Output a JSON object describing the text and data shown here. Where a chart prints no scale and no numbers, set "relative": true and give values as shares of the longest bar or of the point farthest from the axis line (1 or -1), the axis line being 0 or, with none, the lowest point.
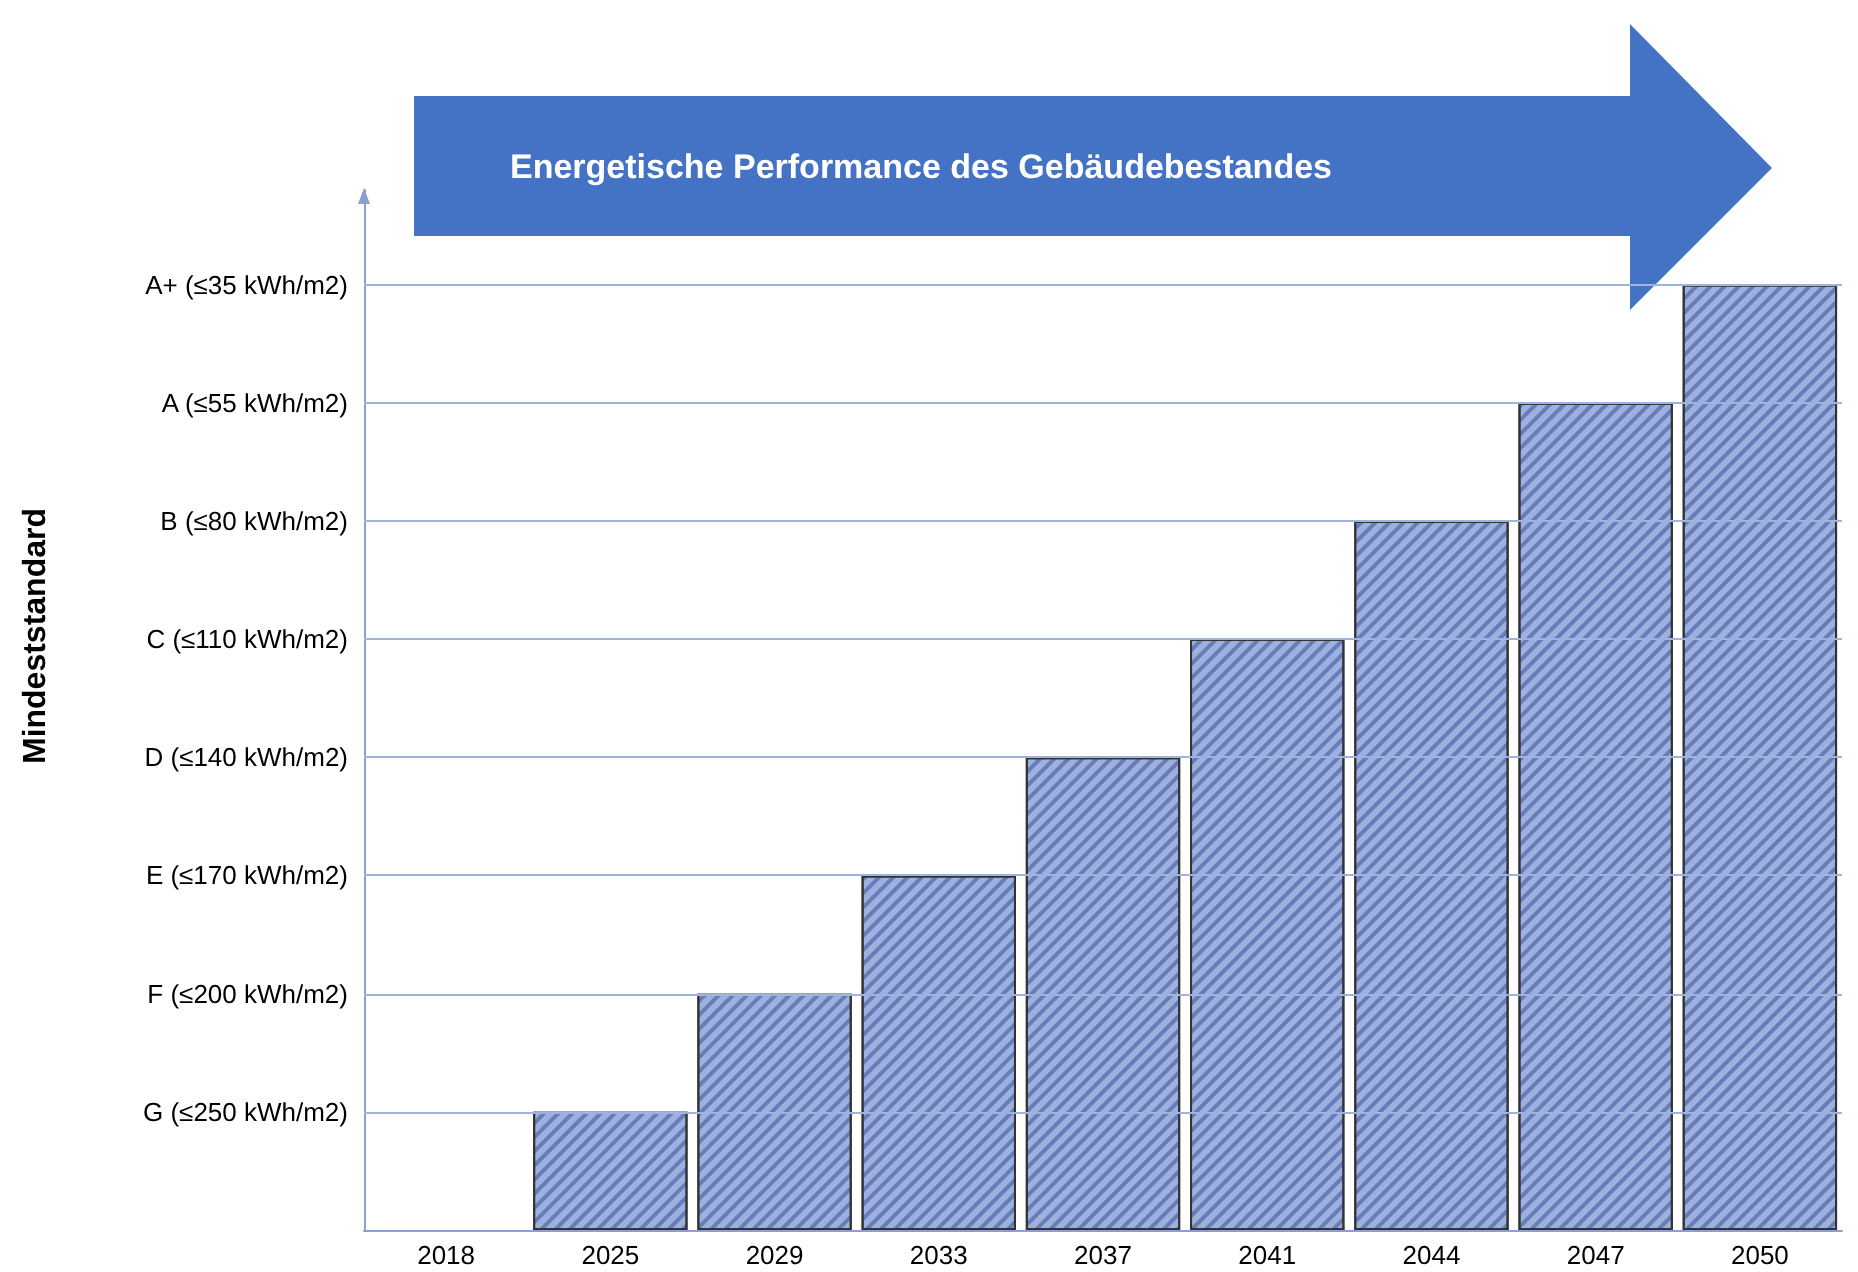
{
  "chart_data": {
    "type": "bar",
    "title": "Energetische Performance des Gebäudebestandes",
    "annotations": [
      "Mindeststandard"
    ],
    "relative": true,
    "categories": [
      "2018",
      "2025",
      "2029",
      "2033",
      "2037",
      "2041",
      "2044",
      "2047",
      "2050"
    ],
    "values": [
      null,
      0.125,
      0.25,
      0.375,
      0.5,
      0.625,
      0.75,
      0.875,
      1
    ],
    "color": "#9db1de",
    "ref_lines": [
      {
        "axis": "y",
        "value": 0.125,
        "label": "G (≤250 kWh/m2)",
        "color": "#9fb3e0"
      },
      {
        "axis": "y",
        "value": 0.25,
        "label": "F (≤200 kWh/m2)",
        "color": "#9fb3e0"
      },
      {
        "axis": "y",
        "value": 0.375,
        "label": "E (≤170 kWh/m2)",
        "color": "#9fb3e0"
      },
      {
        "axis": "y",
        "value": 0.5,
        "label": "D (≤140 kWh/m2)",
        "color": "#9fb3e0"
      },
      {
        "axis": "y",
        "value": 0.625,
        "label": "C (≤110 kWh/m2)",
        "color": "#9fb3e0"
      },
      {
        "axis": "y",
        "value": 0.75,
        "label": "B (≤80 kWh/m2)",
        "color": "#9fb3e0"
      },
      {
        "axis": "y",
        "value": 0.875,
        "label": "A (≤55 kWh/m2)",
        "color": "#9fb3e0"
      },
      {
        "axis": "y",
        "value": 1,
        "label": "A+ (≤35 kWh/m2)",
        "color": "#9fb3e0"
      }
    ]
  }
}
